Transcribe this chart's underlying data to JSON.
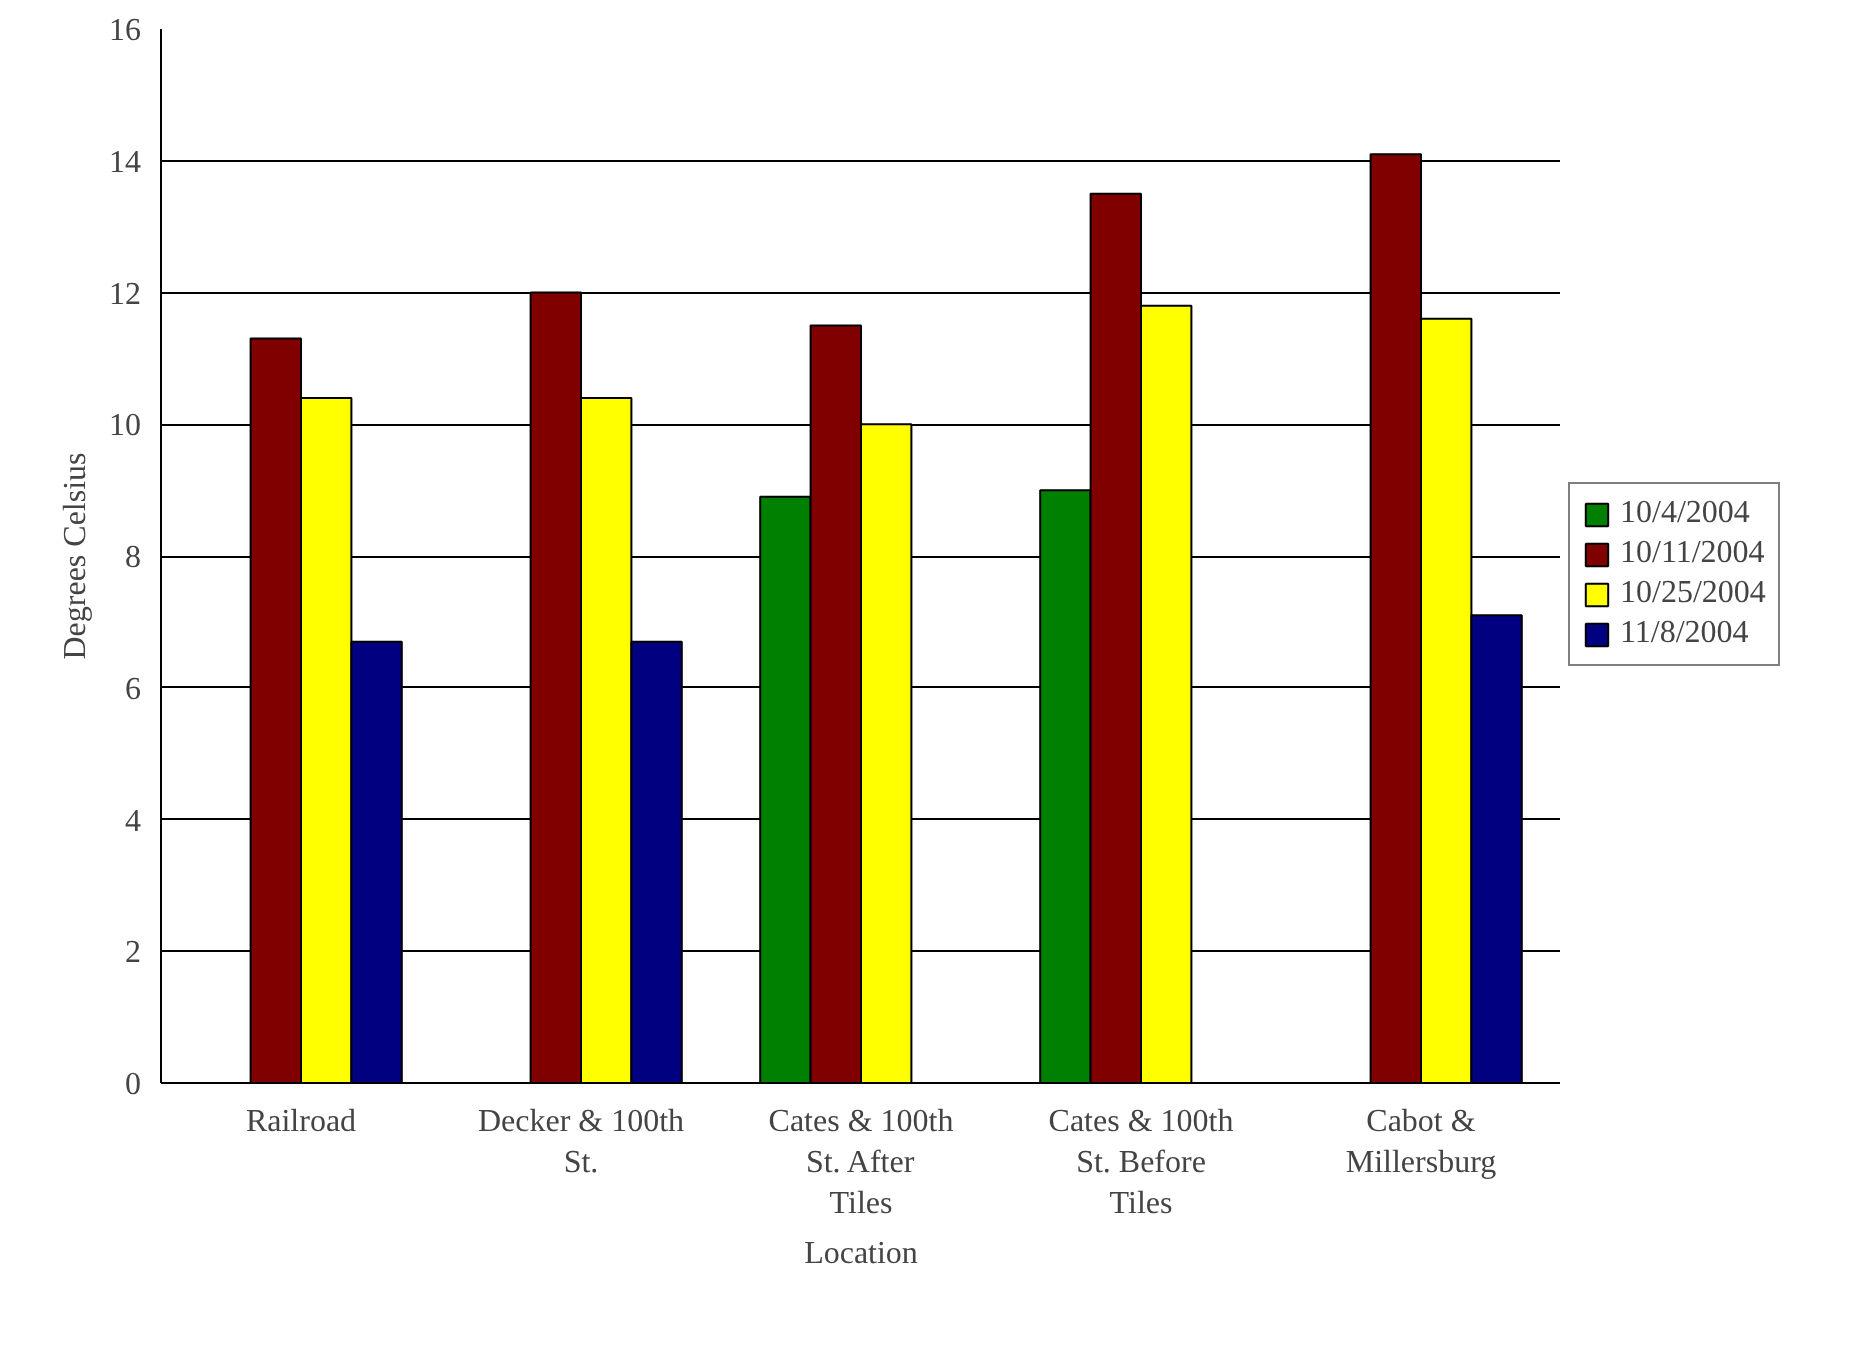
{
  "chart_data": {
    "type": "bar",
    "xlabel": "Location",
    "ylabel": "Degrees Celsius",
    "categories": [
      "Railroad",
      "Decker & 100th St.",
      "Cates & 100th St. After Tiles",
      "Cates & 100th St. Before Tiles",
      "Cabot & Millersburg"
    ],
    "series": [
      {
        "name": "10/4/2004",
        "color": "#008000",
        "values": [
          null,
          null,
          8.9,
          9.0,
          null
        ]
      },
      {
        "name": "10/11/2004",
        "color": "#800000",
        "values": [
          11.3,
          12.0,
          11.5,
          13.5,
          14.1
        ]
      },
      {
        "name": "10/25/2004",
        "color": "#ffff00",
        "values": [
          10.4,
          10.4,
          10.0,
          11.8,
          11.6
        ]
      },
      {
        "name": "11/8/2004",
        "color": "#000080",
        "values": [
          6.7,
          6.7,
          null,
          null,
          7.1
        ]
      }
    ],
    "ylim": [
      0,
      16
    ],
    "yticks": [
      0,
      2,
      4,
      6,
      8,
      10,
      12,
      14,
      16
    ],
    "grid": "y",
    "legend": "right"
  }
}
